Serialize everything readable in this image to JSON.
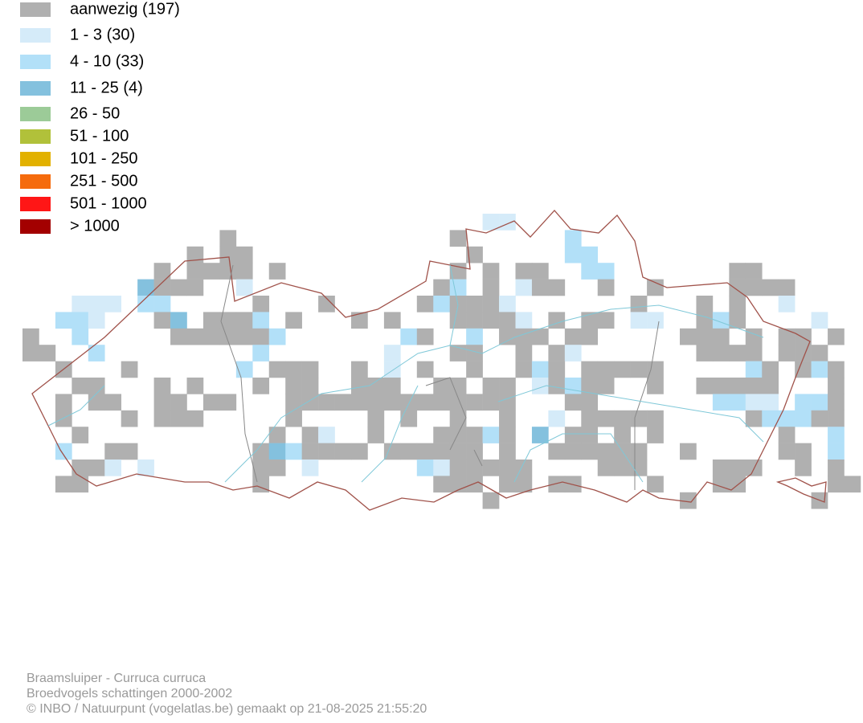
{
  "legend": {
    "items": [
      {
        "label": "aanwezig (197)",
        "color": "#b0b0b0"
      },
      {
        "label": "1 - 3 (30)",
        "color": "#d5ebf9"
      },
      {
        "label": "4 - 10 (33)",
        "color": "#b2e0f8"
      },
      {
        "label": "11 - 25 (4)",
        "color": "#84c1de"
      },
      {
        "label": "26 - 50",
        "color": "#9ccb98"
      },
      {
        "label": "51 - 100",
        "color": "#b1c13a"
      },
      {
        "label": "101 - 250",
        "color": "#e2b100"
      },
      {
        "label": "251 - 500",
        "color": "#f56b0d"
      },
      {
        "label": "501 - 1000",
        "color": "#ff1616"
      },
      {
        "label": "> 1000",
        "color": "#a30000"
      }
    ]
  },
  "footer": {
    "lines": [
      "Braamsluiper - Curruca curruca",
      "Broedvogels schattingen 2000-2002",
      "© INBO / Natuurpunt (vogelatlas.be) gemaakt op 21-08-2025 21:55:20"
    ]
  }
}
